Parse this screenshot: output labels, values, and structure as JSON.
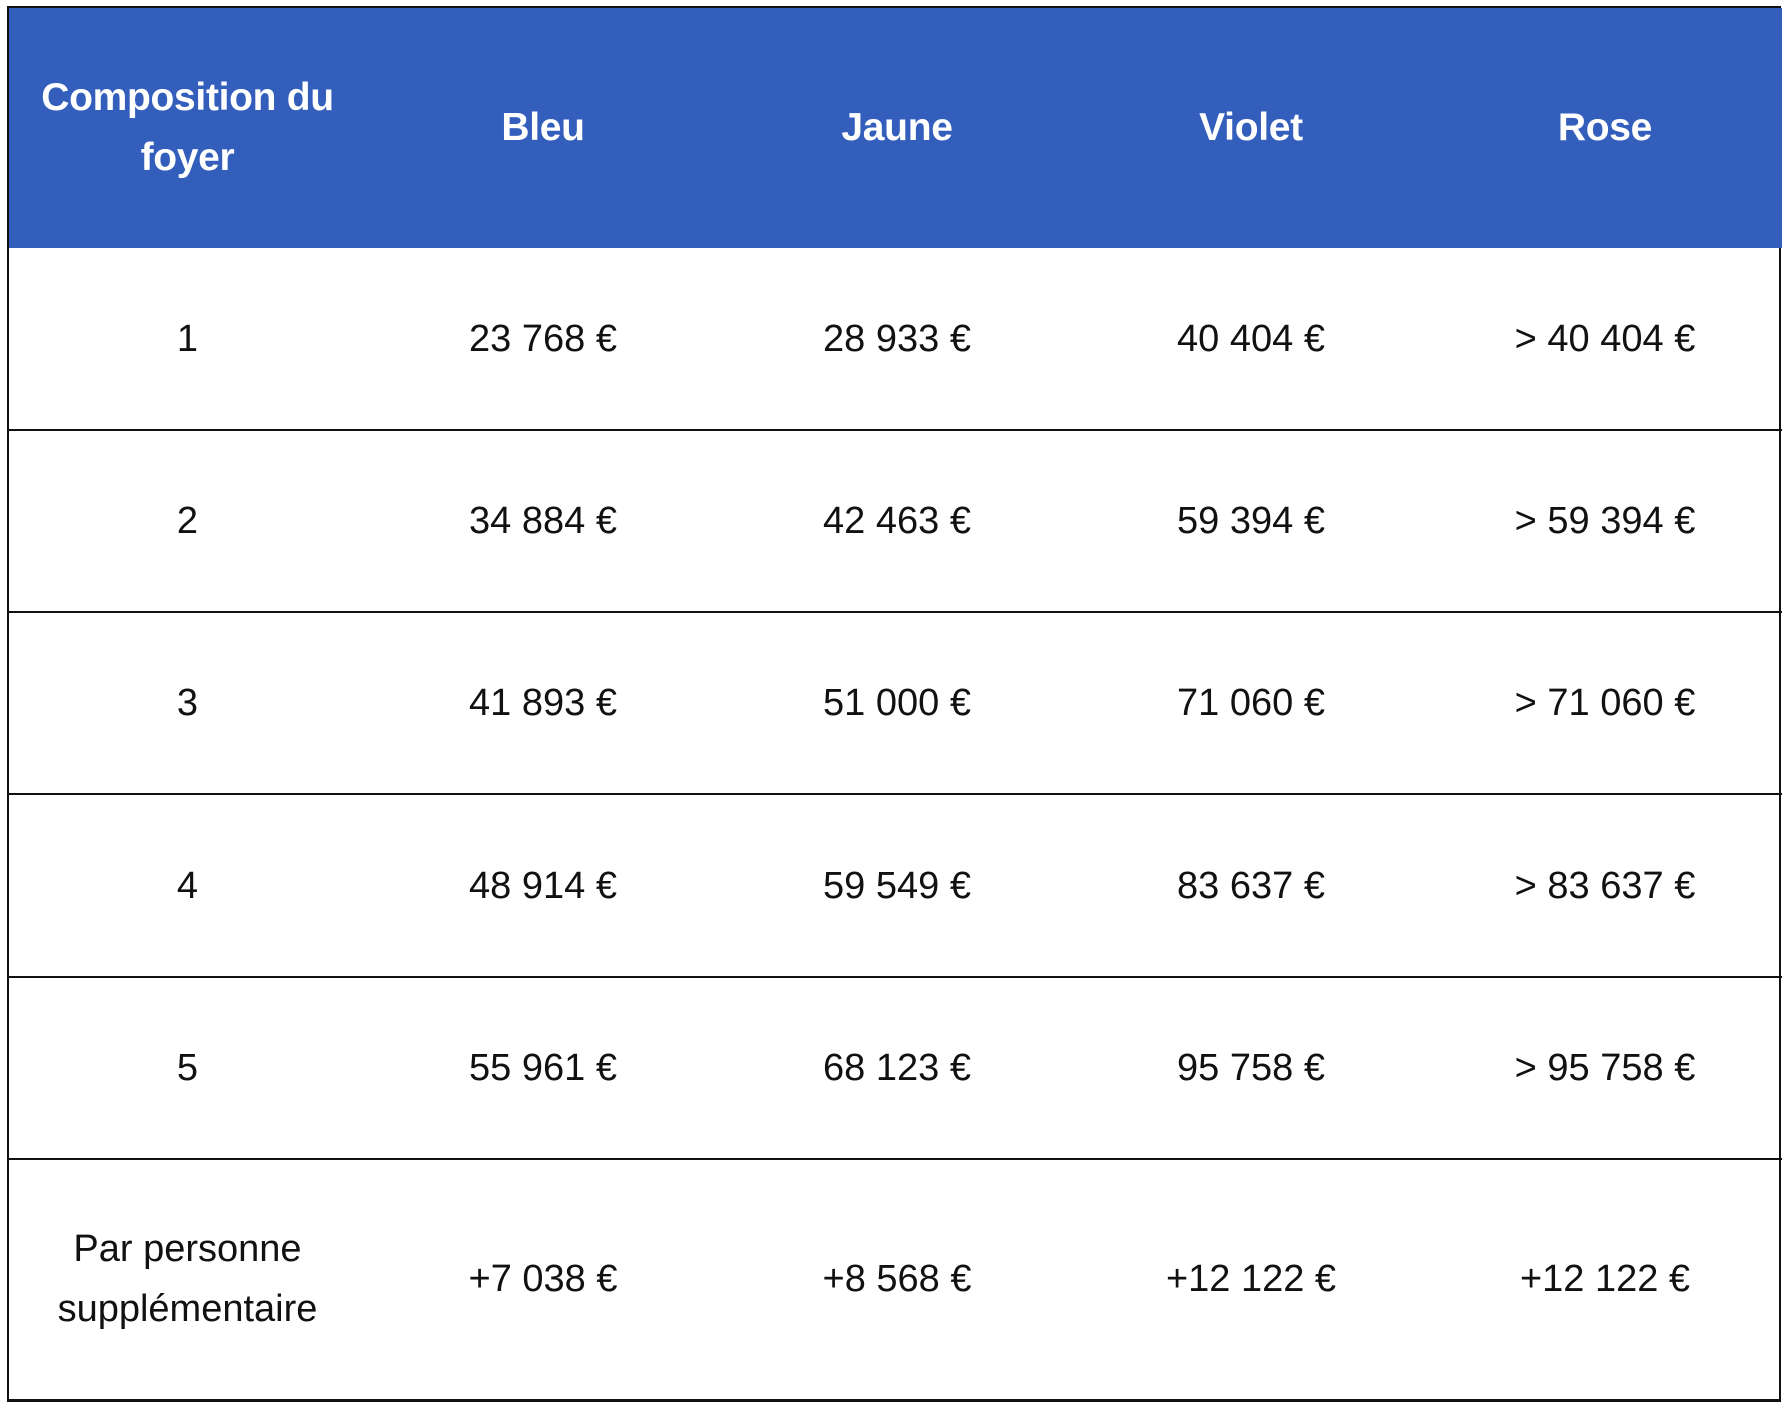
{
  "table": {
    "header_color": "#335ebc",
    "headers": [
      "Composition du foyer",
      "Bleu",
      "Jaune",
      "Violet",
      "Rose"
    ],
    "rows": [
      {
        "label": "1",
        "values": [
          "23 768 €",
          "28 933 €",
          "40 404 €",
          "> 40 404 €"
        ]
      },
      {
        "label": "2",
        "values": [
          "34 884 €",
          "42 463 €",
          "59 394 €",
          "> 59 394 €"
        ]
      },
      {
        "label": "3",
        "values": [
          "41 893 €",
          "51 000 €",
          "71 060 €",
          "> 71 060 €"
        ]
      },
      {
        "label": "4",
        "values": [
          "48 914 €",
          "59 549 €",
          "83 637 €",
          "> 83 637 €"
        ]
      },
      {
        "label": "5",
        "values": [
          "55 961 €",
          "68 123 €",
          "95 758 €",
          "> 95 758 €"
        ]
      },
      {
        "label": "Par personne supplémentaire",
        "values": [
          "+7 038 €",
          "+8 568 €",
          "+12 122 €",
          "+12 122 €"
        ]
      }
    ]
  }
}
